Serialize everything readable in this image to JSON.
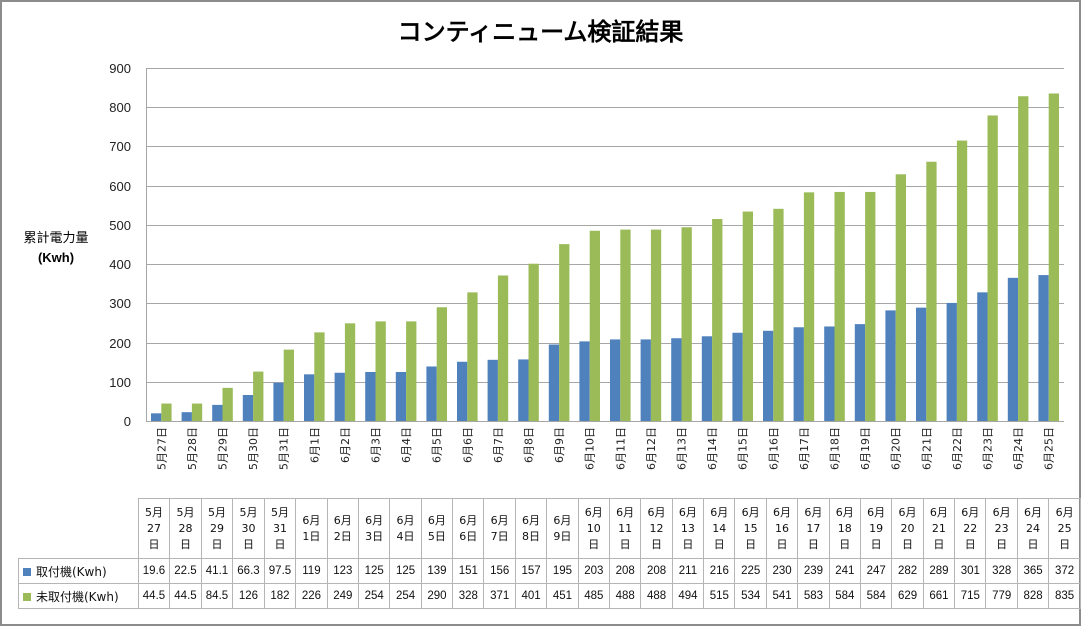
{
  "chart_data": {
    "type": "bar",
    "title": "コンティニューム検証結果",
    "ylabel": "累計電力量",
    "ylabel_unit": "(Kwh)",
    "xlabel": "",
    "ylim": [
      0,
      900
    ],
    "yticks": [
      "0",
      "100",
      "200",
      "300",
      "400",
      "500",
      "600",
      "700",
      "800",
      "900"
    ],
    "grid": true,
    "legend": "data-table",
    "categories": [
      "5月27日",
      "5月28日",
      "5月29日",
      "5月30日",
      "5月31日",
      "6月1日",
      "6月2日",
      "6月3日",
      "6月4日",
      "6月5日",
      "6月6日",
      "6月7日",
      "6月8日",
      "6月9日",
      "6月10日",
      "6月11日",
      "6月12日",
      "6月13日",
      "6月14日",
      "6月15日",
      "6月16日",
      "6月17日",
      "6月18日",
      "6月19日",
      "6月20日",
      "6月21日",
      "6月22日",
      "6月23日",
      "6月24日",
      "6月25日"
    ],
    "table_headers": [
      [
        "5月",
        "27",
        "日"
      ],
      [
        "5月",
        "28",
        "日"
      ],
      [
        "5月",
        "29",
        "日"
      ],
      [
        "5月",
        "30",
        "日"
      ],
      [
        "5月",
        "31",
        "日"
      ],
      [
        "6月",
        "1日"
      ],
      [
        "6月",
        "2日"
      ],
      [
        "6月",
        "3日"
      ],
      [
        "6月",
        "4日"
      ],
      [
        "6月",
        "5日"
      ],
      [
        "6月",
        "6日"
      ],
      [
        "6月",
        "7日"
      ],
      [
        "6月",
        "8日"
      ],
      [
        "6月",
        "9日"
      ],
      [
        "6月",
        "10",
        "日"
      ],
      [
        "6月",
        "11",
        "日"
      ],
      [
        "6月",
        "12",
        "日"
      ],
      [
        "6月",
        "13",
        "日"
      ],
      [
        "6月",
        "14",
        "日"
      ],
      [
        "6月",
        "15",
        "日"
      ],
      [
        "6月",
        "16",
        "日"
      ],
      [
        "6月",
        "17",
        "日"
      ],
      [
        "6月",
        "18",
        "日"
      ],
      [
        "6月",
        "19",
        "日"
      ],
      [
        "6月",
        "20",
        "日"
      ],
      [
        "6月",
        "21",
        "日"
      ],
      [
        "6月",
        "22",
        "日"
      ],
      [
        "6月",
        "23",
        "日"
      ],
      [
        "6月",
        "24",
        "日"
      ],
      [
        "6月",
        "25",
        "日"
      ]
    ],
    "series": [
      {
        "name": "取付機(Kwh)",
        "color": "#4f81bd",
        "values": [
          19.6,
          22.5,
          41.1,
          66.3,
          97.5,
          119,
          123,
          125,
          125,
          139,
          151,
          156,
          157,
          195,
          203,
          208,
          208,
          211,
          216,
          225,
          230,
          239,
          241,
          247,
          282,
          289,
          301,
          328,
          365,
          372
        ],
        "labels": [
          "19.6",
          "22.5",
          "41.1",
          "66.3",
          "97.5",
          "119",
          "123",
          "125",
          "125",
          "139",
          "151",
          "156",
          "157",
          "195",
          "203",
          "208",
          "208",
          "211",
          "216",
          "225",
          "230",
          "239",
          "241",
          "247",
          "282",
          "289",
          "301",
          "328",
          "365",
          "372"
        ]
      },
      {
        "name": "未取付機(Kwh)",
        "color": "#9bbb59",
        "values": [
          44.5,
          44.5,
          84.5,
          126,
          182,
          226,
          249,
          254,
          254,
          290,
          328,
          371,
          401,
          451,
          485,
          488,
          488,
          494,
          515,
          534,
          541,
          583,
          584,
          584,
          629,
          661,
          715,
          779,
          828,
          835
        ],
        "labels": [
          "44.5",
          "44.5",
          "84.5",
          "126",
          "182",
          "226",
          "249",
          "254",
          "254",
          "290",
          "328",
          "371",
          "401",
          "451",
          "485",
          "488",
          "488",
          "494",
          "515",
          "534",
          "541",
          "583",
          "584",
          "584",
          "629",
          "661",
          "715",
          "779",
          "828",
          "835"
        ]
      }
    ]
  }
}
